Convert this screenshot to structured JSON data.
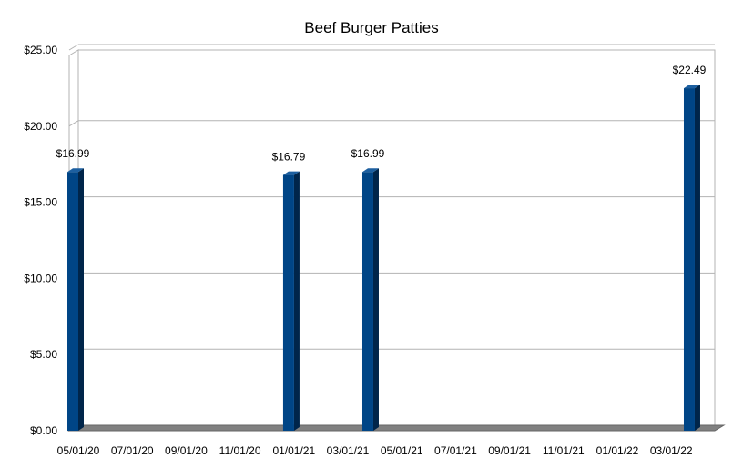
{
  "chart_data": {
    "type": "bar",
    "title": "Beef Burger Patties",
    "xlabel": "",
    "ylabel": "",
    "ylim": [
      0,
      25
    ],
    "y_ticks": [
      "$0.00",
      "$5.00",
      "$10.00",
      "$15.00",
      "$20.00",
      "$25.00"
    ],
    "x_ticks": [
      "05/01/20",
      "07/01/20",
      "09/01/20",
      "11/01/20",
      "01/01/21",
      "03/01/21",
      "05/01/21",
      "07/01/21",
      "09/01/21",
      "11/01/21",
      "01/01/22",
      "03/01/22"
    ],
    "x_range": [
      "2020-05-01",
      "2022-05-01"
    ],
    "grid": true,
    "legend": "none",
    "bar_color": "#004586",
    "points": [
      {
        "date": "2020-05-01",
        "value": 16.99,
        "label": "$16.99"
      },
      {
        "date": "2021-01-01",
        "value": 16.79,
        "label": "$16.79"
      },
      {
        "date": "2021-04-01",
        "value": 16.99,
        "label": "$16.99"
      },
      {
        "date": "2022-04-01",
        "value": 22.49,
        "label": "$22.49"
      }
    ]
  }
}
